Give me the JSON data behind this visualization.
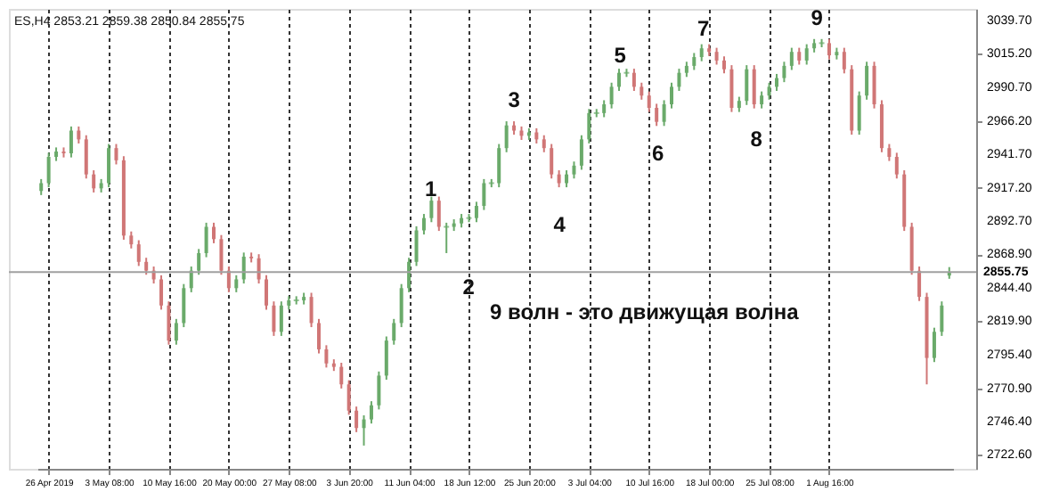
{
  "chart_data": {
    "type": "candlestick",
    "categories": [
      null,
      "26 Apr 2019",
      null,
      null,
      null,
      null,
      null,
      null,
      null,
      "3 May 08:00",
      null,
      null,
      null,
      null,
      null,
      null,
      null,
      "10 May 16:00",
      null,
      null,
      null,
      null,
      null,
      null,
      null,
      "20 May 00:00",
      null,
      null,
      null,
      null,
      null,
      null,
      null,
      "27 May 08:00",
      null,
      null,
      null,
      null,
      null,
      null,
      null,
      "3 Jun 20:00",
      null,
      null,
      null,
      null,
      null,
      null,
      null,
      "11 Jun 04:00",
      null,
      null,
      null,
      null,
      null,
      null,
      null,
      "18 Jun 12:00",
      null,
      null,
      null,
      null,
      null,
      null,
      null,
      "25 Jun 20:00",
      null,
      null,
      null,
      null,
      null,
      null,
      null,
      "3 Jul 04:00",
      null,
      null,
      null,
      null,
      null,
      null,
      null,
      "10 Jul 16:00",
      null,
      null,
      null,
      null,
      null,
      null,
      null,
      "18 Jul 00:00",
      null,
      null,
      null,
      null,
      null,
      null,
      null,
      "25 Jul 08:00",
      null,
      null,
      null,
      null,
      null,
      null,
      null,
      "1 Aug 16:00",
      null,
      null,
      null,
      null,
      null,
      null,
      null,
      null,
      null,
      null,
      null,
      null,
      null,
      null,
      null,
      null
    ],
    "ohlc": [
      [
        2915.0,
        2923.7,
        2912.0,
        2920.7
      ],
      [
        2920.7,
        2942.9,
        2917.7,
        2939.9
      ],
      [
        2939.9,
        2946.8,
        2936.9,
        2943.8
      ],
      [
        2943.8,
        2946.8,
        2939.5,
        2942.5
      ],
      [
        2942.5,
        2962.1,
        2939.5,
        2959.1
      ],
      [
        2959.1,
        2962.1,
        2949.7,
        2952.7
      ],
      [
        2952.7,
        2955.7,
        2924.1,
        2927.1
      ],
      [
        2927.1,
        2930.1,
        2913.9,
        2916.9
      ],
      [
        2916.9,
        2923.7,
        2913.9,
        2920.7
      ],
      [
        2920.7,
        2949.3,
        2917.7,
        2946.3
      ],
      [
        2946.3,
        2949.3,
        2934.4,
        2937.4
      ],
      [
        2937.4,
        2940.4,
        2879.4,
        2882.4
      ],
      [
        2882.4,
        2885.4,
        2873.0,
        2876.0
      ],
      [
        2876.0,
        2879.0,
        2860.2,
        2863.2
      ],
      [
        2863.2,
        2866.2,
        2853.8,
        2856.8
      ],
      [
        2856.8,
        2859.8,
        2847.4,
        2850.4
      ],
      [
        2850.4,
        2853.4,
        2828.3,
        2831.3
      ],
      [
        2831.3,
        2834.3,
        2802.7,
        2805.7
      ],
      [
        2805.7,
        2821.5,
        2802.7,
        2818.5
      ],
      [
        2818.5,
        2847.0,
        2815.5,
        2844.0
      ],
      [
        2844.0,
        2859.8,
        2841.0,
        2856.8
      ],
      [
        2856.8,
        2872.6,
        2853.8,
        2869.6
      ],
      [
        2869.6,
        2891.8,
        2866.6,
        2888.8
      ],
      [
        2888.8,
        2891.8,
        2876.8,
        2879.8
      ],
      [
        2879.8,
        2882.8,
        2853.8,
        2856.8
      ],
      [
        2856.8,
        2859.8,
        2841.0,
        2844.0
      ],
      [
        2844.0,
        2853.4,
        2841.0,
        2850.4
      ],
      [
        2850.4,
        2870.0,
        2847.4,
        2867.0
      ],
      [
        2867.0,
        2870.0,
        2862.8,
        2865.8
      ],
      [
        2865.8,
        2868.8,
        2847.4,
        2850.4
      ],
      [
        2850.4,
        2853.4,
        2828.3,
        2831.3
      ],
      [
        2831.3,
        2834.3,
        2809.1,
        2812.1
      ],
      [
        2812.1,
        2834.3,
        2809.1,
        2831.3
      ],
      [
        2831.3,
        2838.1,
        2828.3,
        2835.1
      ],
      [
        2835.1,
        2838.1,
        2832.1,
        2835.1
      ],
      [
        2835.1,
        2840.6,
        2832.1,
        2837.6
      ],
      [
        2837.6,
        2840.6,
        2815.5,
        2818.5
      ],
      [
        2818.5,
        2821.5,
        2796.3,
        2799.3
      ],
      [
        2799.3,
        2802.3,
        2786.0,
        2789.0
      ],
      [
        2789.0,
        2792.0,
        2783.5,
        2786.5
      ],
      [
        2786.5,
        2789.5,
        2770.7,
        2773.7
      ],
      [
        2773.7,
        2776.7,
        2751.5,
        2754.5
      ],
      [
        2754.5,
        2757.5,
        2738.8,
        2741.8
      ],
      [
        2741.8,
        2751.1,
        2729.0,
        2748.1
      ],
      [
        2748.1,
        2761.4,
        2745.1,
        2758.4
      ],
      [
        2758.4,
        2783.1,
        2755.4,
        2780.1
      ],
      [
        2780.1,
        2808.7,
        2777.1,
        2805.7
      ],
      [
        2805.7,
        2821.5,
        2802.7,
        2818.5
      ],
      [
        2818.5,
        2847.0,
        2815.5,
        2844.0
      ],
      [
        2844.0,
        2866.2,
        2841.0,
        2863.2
      ],
      [
        2863.2,
        2889.2,
        2860.2,
        2886.2
      ],
      [
        2886.2,
        2898.2,
        2883.2,
        2895.2
      ],
      [
        2895.2,
        2910.9,
        2892.2,
        2907.9
      ],
      [
        2907.9,
        2910.9,
        2885.8,
        2888.8
      ],
      [
        2888.8,
        2891.8,
        2869.6,
        2888.8
      ],
      [
        2888.8,
        2894.3,
        2885.8,
        2891.3
      ],
      [
        2891.3,
        2898.2,
        2888.3,
        2895.2
      ],
      [
        2895.2,
        2898.2,
        2892.2,
        2895.2
      ],
      [
        2895.2,
        2907.1,
        2892.2,
        2904.1
      ],
      [
        2904.1,
        2923.7,
        2901.1,
        2920.7
      ],
      [
        2920.7,
        2923.7,
        2917.7,
        2920.7
      ],
      [
        2920.7,
        2949.3,
        2917.7,
        2946.3
      ],
      [
        2946.3,
        2965.9,
        2943.3,
        2962.9
      ],
      [
        2962.9,
        2965.9,
        2956.1,
        2959.1
      ],
      [
        2959.1,
        2962.1,
        2952.3,
        2955.3
      ],
      [
        2955.3,
        2960.8,
        2952.3,
        2957.8
      ],
      [
        2957.8,
        2960.8,
        2949.7,
        2952.7
      ],
      [
        2952.7,
        2955.7,
        2943.3,
        2946.3
      ],
      [
        2946.3,
        2949.3,
        2924.1,
        2927.1
      ],
      [
        2927.1,
        2930.1,
        2917.7,
        2920.7
      ],
      [
        2920.7,
        2930.1,
        2917.7,
        2927.1
      ],
      [
        2927.1,
        2936.5,
        2924.1,
        2933.5
      ],
      [
        2933.5,
        2955.7,
        2930.5,
        2952.7
      ],
      [
        2952.7,
        2974.9,
        2949.7,
        2971.9
      ],
      [
        2971.9,
        2974.9,
        2968.9,
        2971.9
      ],
      [
        2971.9,
        2981.3,
        2968.9,
        2978.3
      ],
      [
        2978.3,
        2994.1,
        2975.3,
        2991.1
      ],
      [
        2991.1,
        3004.3,
        2988.1,
        3001.3
      ],
      [
        3001.3,
        3004.3,
        2998.3,
        3001.3
      ],
      [
        3001.3,
        3004.3,
        2988.1,
        2991.1
      ],
      [
        2991.1,
        2994.1,
        2981.7,
        2984.7
      ],
      [
        2984.7,
        2987.7,
        2972.7,
        2975.7
      ],
      [
        2975.7,
        2978.7,
        2962.5,
        2965.5
      ],
      [
        2965.5,
        2981.3,
        2962.5,
        2978.3
      ],
      [
        2978.3,
        2994.1,
        2975.3,
        2991.1
      ],
      [
        2991.1,
        3004.3,
        2988.1,
        3001.3
      ],
      [
        3001.3,
        3009.4,
        2998.3,
        3006.4
      ],
      [
        3006.4,
        3015.8,
        3003.4,
        3012.8
      ],
      [
        3012.8,
        3022.2,
        3009.8,
        3019.2
      ],
      [
        3019.2,
        3022.2,
        3013.6,
        3016.6
      ],
      [
        3016.6,
        3019.6,
        3007.3,
        3010.3
      ],
      [
        3010.3,
        3013.3,
        3000.9,
        3003.9
      ],
      [
        3003.9,
        3006.9,
        2972.7,
        2975.7
      ],
      [
        2975.7,
        2983.8,
        2972.7,
        2980.8
      ],
      [
        2980.8,
        3006.9,
        2977.8,
        3003.9
      ],
      [
        3003.9,
        3006.9,
        2975.3,
        2978.3
      ],
      [
        2978.3,
        2987.7,
        2975.3,
        2984.7
      ],
      [
        2984.7,
        2994.1,
        2981.7,
        2991.1
      ],
      [
        2991.1,
        3000.5,
        2988.1,
        2997.5
      ],
      [
        2997.5,
        3009.4,
        2994.5,
        3006.4
      ],
      [
        3006.4,
        3019.6,
        3003.4,
        3016.6
      ],
      [
        3016.6,
        3019.6,
        3007.3,
        3010.3
      ],
      [
        3010.3,
        3022.2,
        3007.3,
        3019.2
      ],
      [
        3019.2,
        3026.0,
        3016.2,
        3023.0
      ],
      [
        3023.0,
        3026.0,
        3020.0,
        3023.0
      ],
      [
        3023.0,
        3026.0,
        3011.1,
        3014.1
      ],
      [
        3014.1,
        3019.6,
        3011.1,
        3016.6
      ],
      [
        3016.6,
        3019.6,
        3000.9,
        3003.9
      ],
      [
        3003.9,
        3006.9,
        2956.1,
        2959.1
      ],
      [
        2959.1,
        2987.7,
        2956.1,
        2984.7
      ],
      [
        2984.7,
        3009.4,
        2981.7,
        3006.4
      ],
      [
        3006.4,
        3009.4,
        2975.3,
        2978.3
      ],
      [
        2978.3,
        2981.3,
        2943.3,
        2946.3
      ],
      [
        2946.3,
        2949.3,
        2936.9,
        2939.9
      ],
      [
        2939.9,
        2942.9,
        2924.1,
        2927.1
      ],
      [
        2927.1,
        2930.1,
        2885.8,
        2888.8
      ],
      [
        2888.8,
        2891.8,
        2853.8,
        2856.8
      ],
      [
        2856.8,
        2859.8,
        2834.6,
        2837.6
      ],
      [
        2837.6,
        2840.6,
        2773.7,
        2793.0
      ],
      [
        2793.0,
        2815.1,
        2790.0,
        2812.1
      ],
      [
        2812.1,
        2834.3,
        2809.1,
        2831.3
      ],
      [
        2853.21,
        2859.38,
        2850.84,
        2855.75
      ]
    ],
    "ylim": [
      2712,
      3048
    ],
    "yticks": [
      {
        "value": 2722.6,
        "label": "2722.60"
      },
      {
        "value": 2746.4,
        "label": "2746.40"
      },
      {
        "value": 2770.9,
        "label": "2770.90"
      },
      {
        "value": 2795.4,
        "label": "2795.40"
      },
      {
        "value": 2819.9,
        "label": "2819.90"
      },
      {
        "value": 2844.4,
        "label": "2844.40"
      },
      {
        "value": 2868.9,
        "label": "2868.90"
      },
      {
        "value": 2892.7,
        "label": "2892.70"
      },
      {
        "value": 2917.2,
        "label": "2917.20"
      },
      {
        "value": 2941.7,
        "label": "2941.70"
      },
      {
        "value": 2966.2,
        "label": "2966.20"
      },
      {
        "value": 2990.7,
        "label": "2990.70"
      },
      {
        "value": 3015.2,
        "label": "3015.20"
      },
      {
        "value": 3039.7,
        "label": "3039.70"
      }
    ],
    "grid": "x",
    "ref_lines": [
      {
        "axis": "y",
        "value": 2855.75,
        "label": "2855.75",
        "color": "#a0a0a0"
      }
    ],
    "annotations": [
      "ES,H4  2853.21 2859.38 2850.84 2855.75",
      "9 волн - это движущая волна",
      "1",
      "2",
      "3",
      "4",
      "5",
      "6",
      "7",
      "8",
      "9"
    ]
  }
}
